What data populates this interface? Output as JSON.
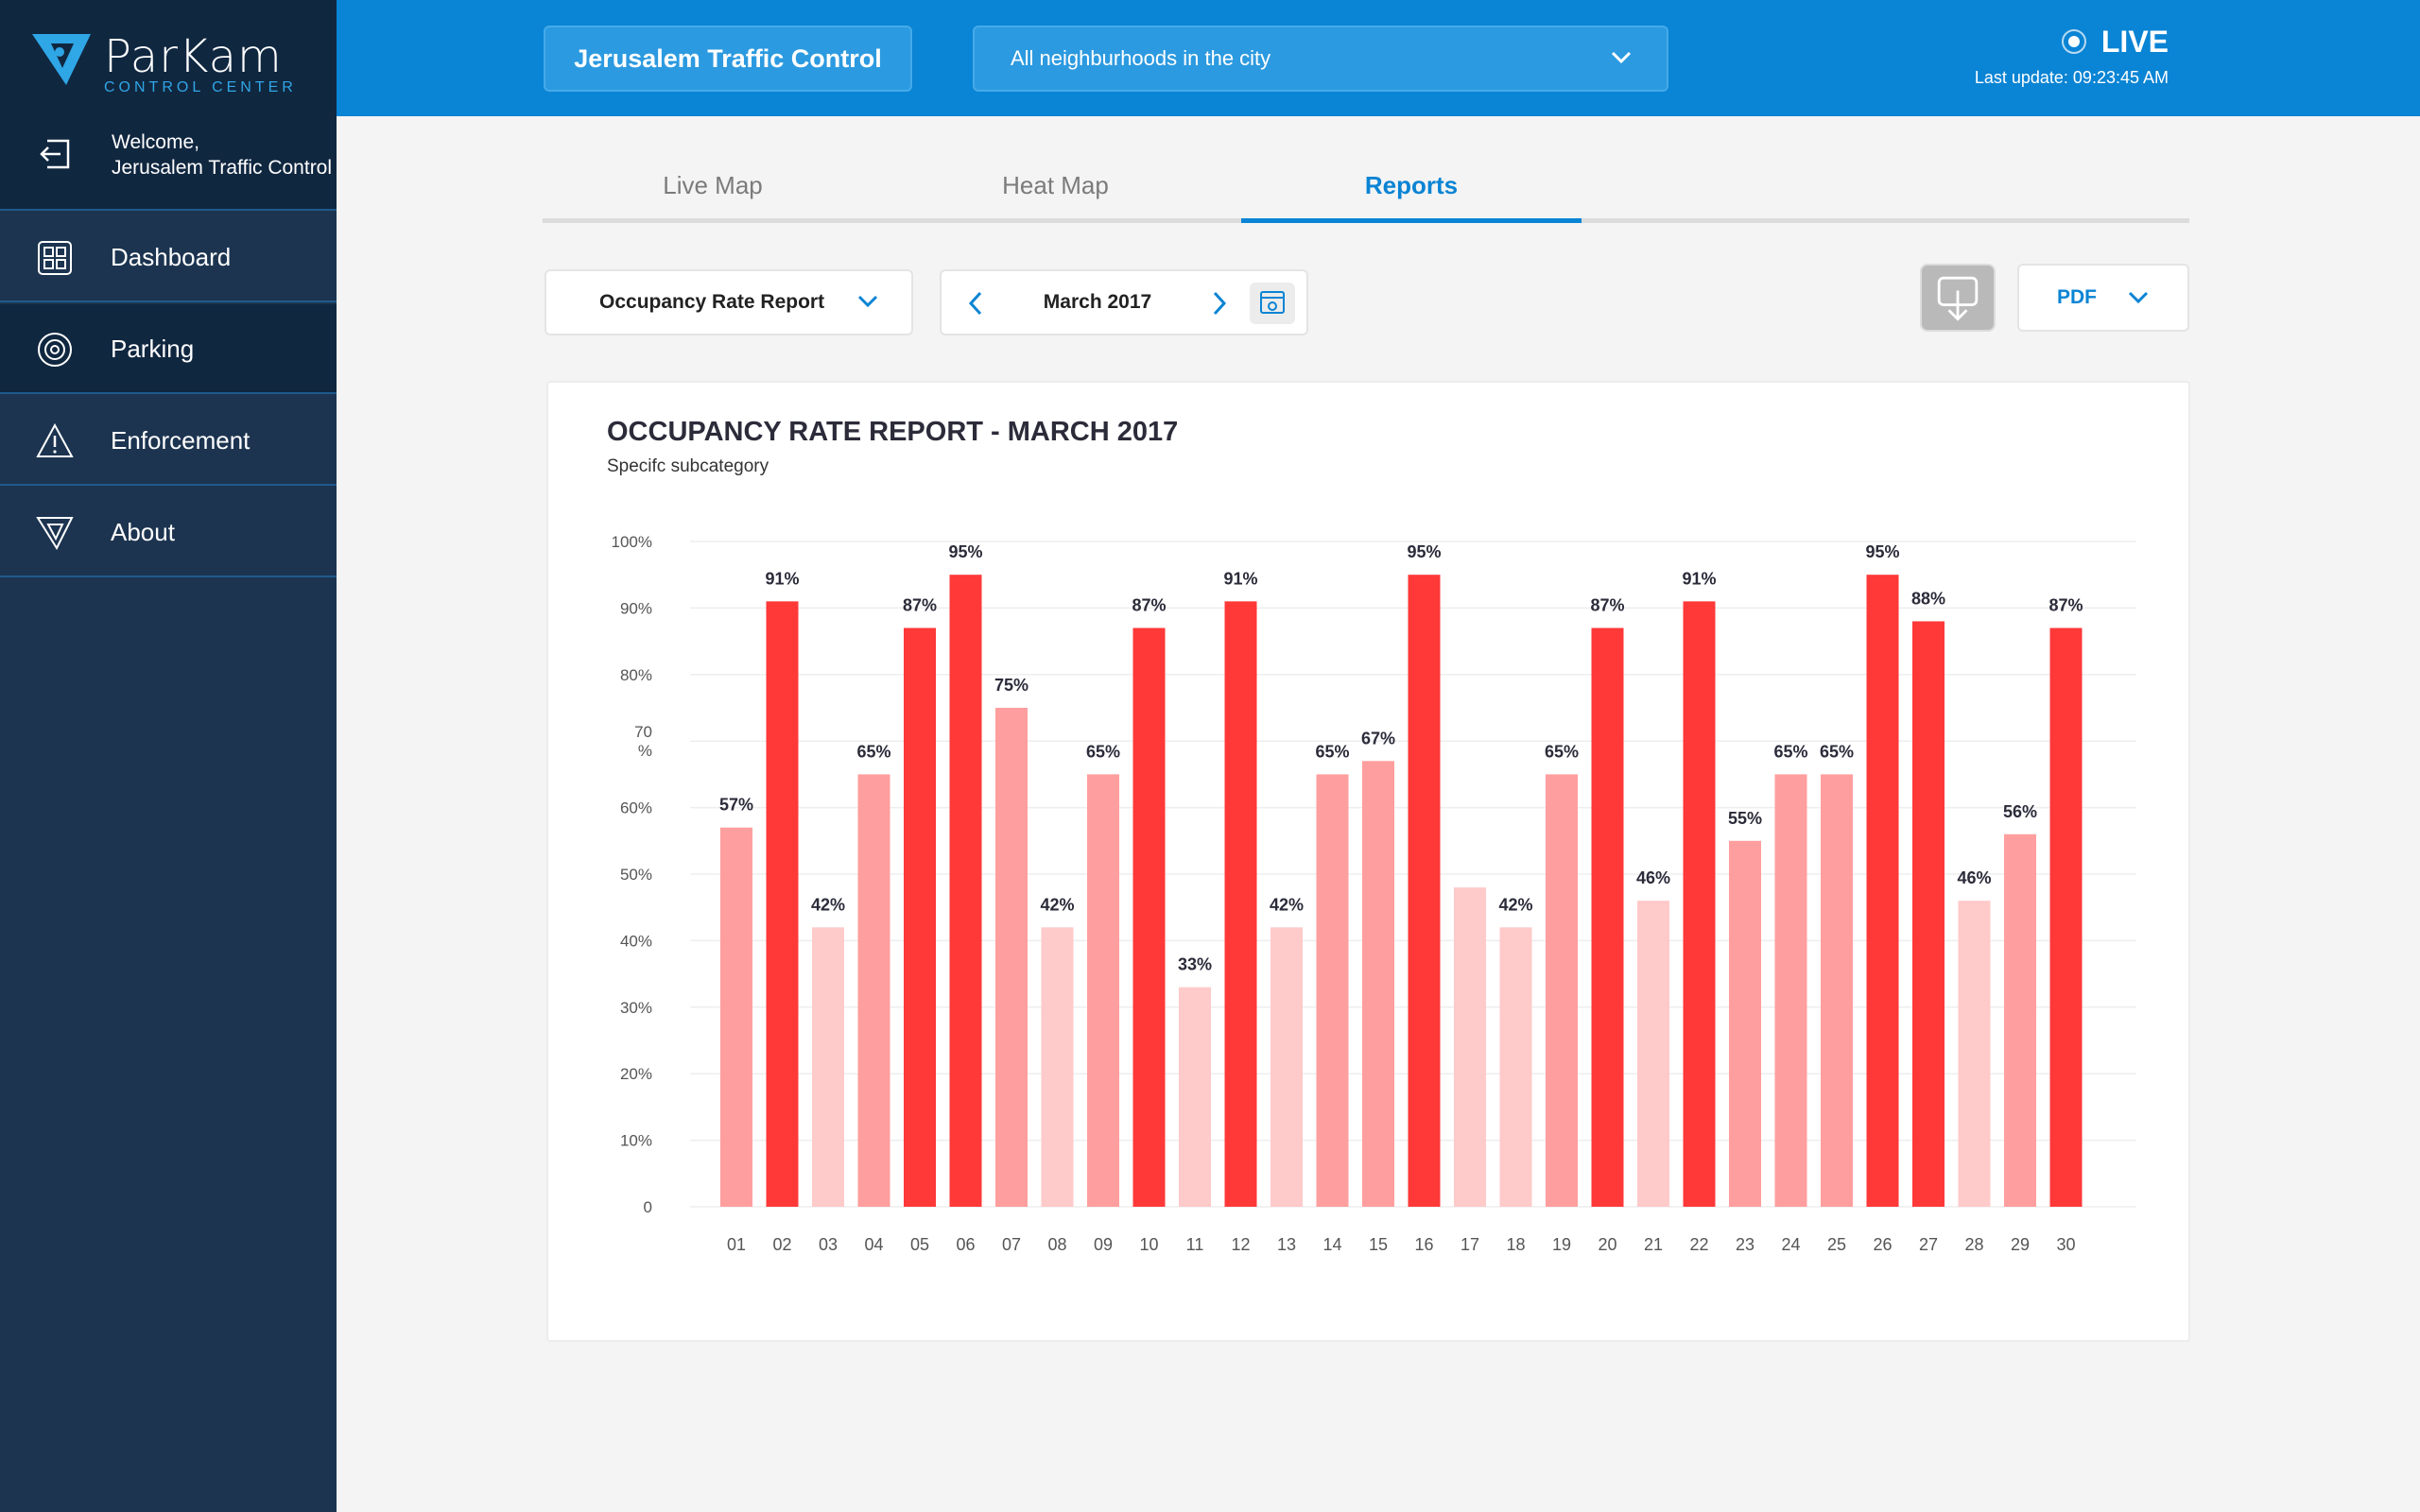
{
  "app": {
    "logo_text": "ParKam",
    "logo_sub": "CONTROL CENTER"
  },
  "sidebar": {
    "welcome_line1": "Welcome,",
    "welcome_line2": "Jerusalem Traffic Control",
    "items": [
      {
        "label": "Dashboard",
        "icon": "grid-icon"
      },
      {
        "label": "Parking",
        "icon": "target-icon"
      },
      {
        "label": "Enforcement",
        "icon": "warning-icon"
      },
      {
        "label": "About",
        "icon": "parkam-logo-icon"
      }
    ],
    "active_item": "Parking"
  },
  "header": {
    "title_button": "Jerusalem Traffic Control",
    "area_select": "All neighburhoods in the city",
    "live_label": "LIVE",
    "last_update": "Last update:  09:23:45 AM"
  },
  "tabs": [
    {
      "label": "Live Map",
      "active": false
    },
    {
      "label": "Heat Map",
      "active": false
    },
    {
      "label": "Reports",
      "active": true
    }
  ],
  "controls": {
    "report_type": "Occupancy Rate Report",
    "month": "March 2017",
    "export_format": "PDF"
  },
  "colors": {
    "header_blue": "#0a84d4",
    "sidebar_dark": "#1c3450",
    "bar_high": "#ff3838",
    "bar_mid": "#ff9e9e",
    "bar_low": "#ffcaca"
  },
  "chart_data": {
    "type": "bar",
    "title": "OCCUPANCY RATE REPORT - MARCH 2017",
    "subtitle": "Specifc subcategory",
    "categories": [
      "01",
      "02",
      "03",
      "04",
      "05",
      "06",
      "07",
      "08",
      "09",
      "10",
      "11",
      "12",
      "13",
      "14",
      "15",
      "16",
      "17",
      "18",
      "19",
      "20",
      "21",
      "22",
      "23",
      "24",
      "25",
      "26",
      "27",
      "28",
      "29",
      "30"
    ],
    "values": [
      57,
      91,
      42,
      65,
      87,
      95,
      75,
      42,
      65,
      87,
      33,
      91,
      42,
      65,
      67,
      95,
      48,
      42,
      65,
      87,
      46,
      91,
      55,
      65,
      65,
      95,
      88,
      46,
      56,
      87
    ],
    "labels": [
      "57%",
      "91%",
      "42%",
      "65%",
      "87%",
      "95%",
      "75%",
      "42%",
      "65%",
      "87%",
      "33%",
      "91%",
      "42%",
      "65%",
      "67%",
      "95%",
      "",
      "42%",
      "65%",
      "87%",
      "46%",
      "91%",
      "55%",
      "65%",
      "65%",
      "95%",
      "88%",
      "46%",
      "56%",
      "87%"
    ],
    "y_ticks": [
      "0",
      "10%",
      "20%",
      "30%",
      "40%",
      "50%",
      "60%",
      "70 %",
      "80%",
      "90%",
      "100%"
    ],
    "ylim": [
      0,
      100
    ],
    "grid": true
  }
}
